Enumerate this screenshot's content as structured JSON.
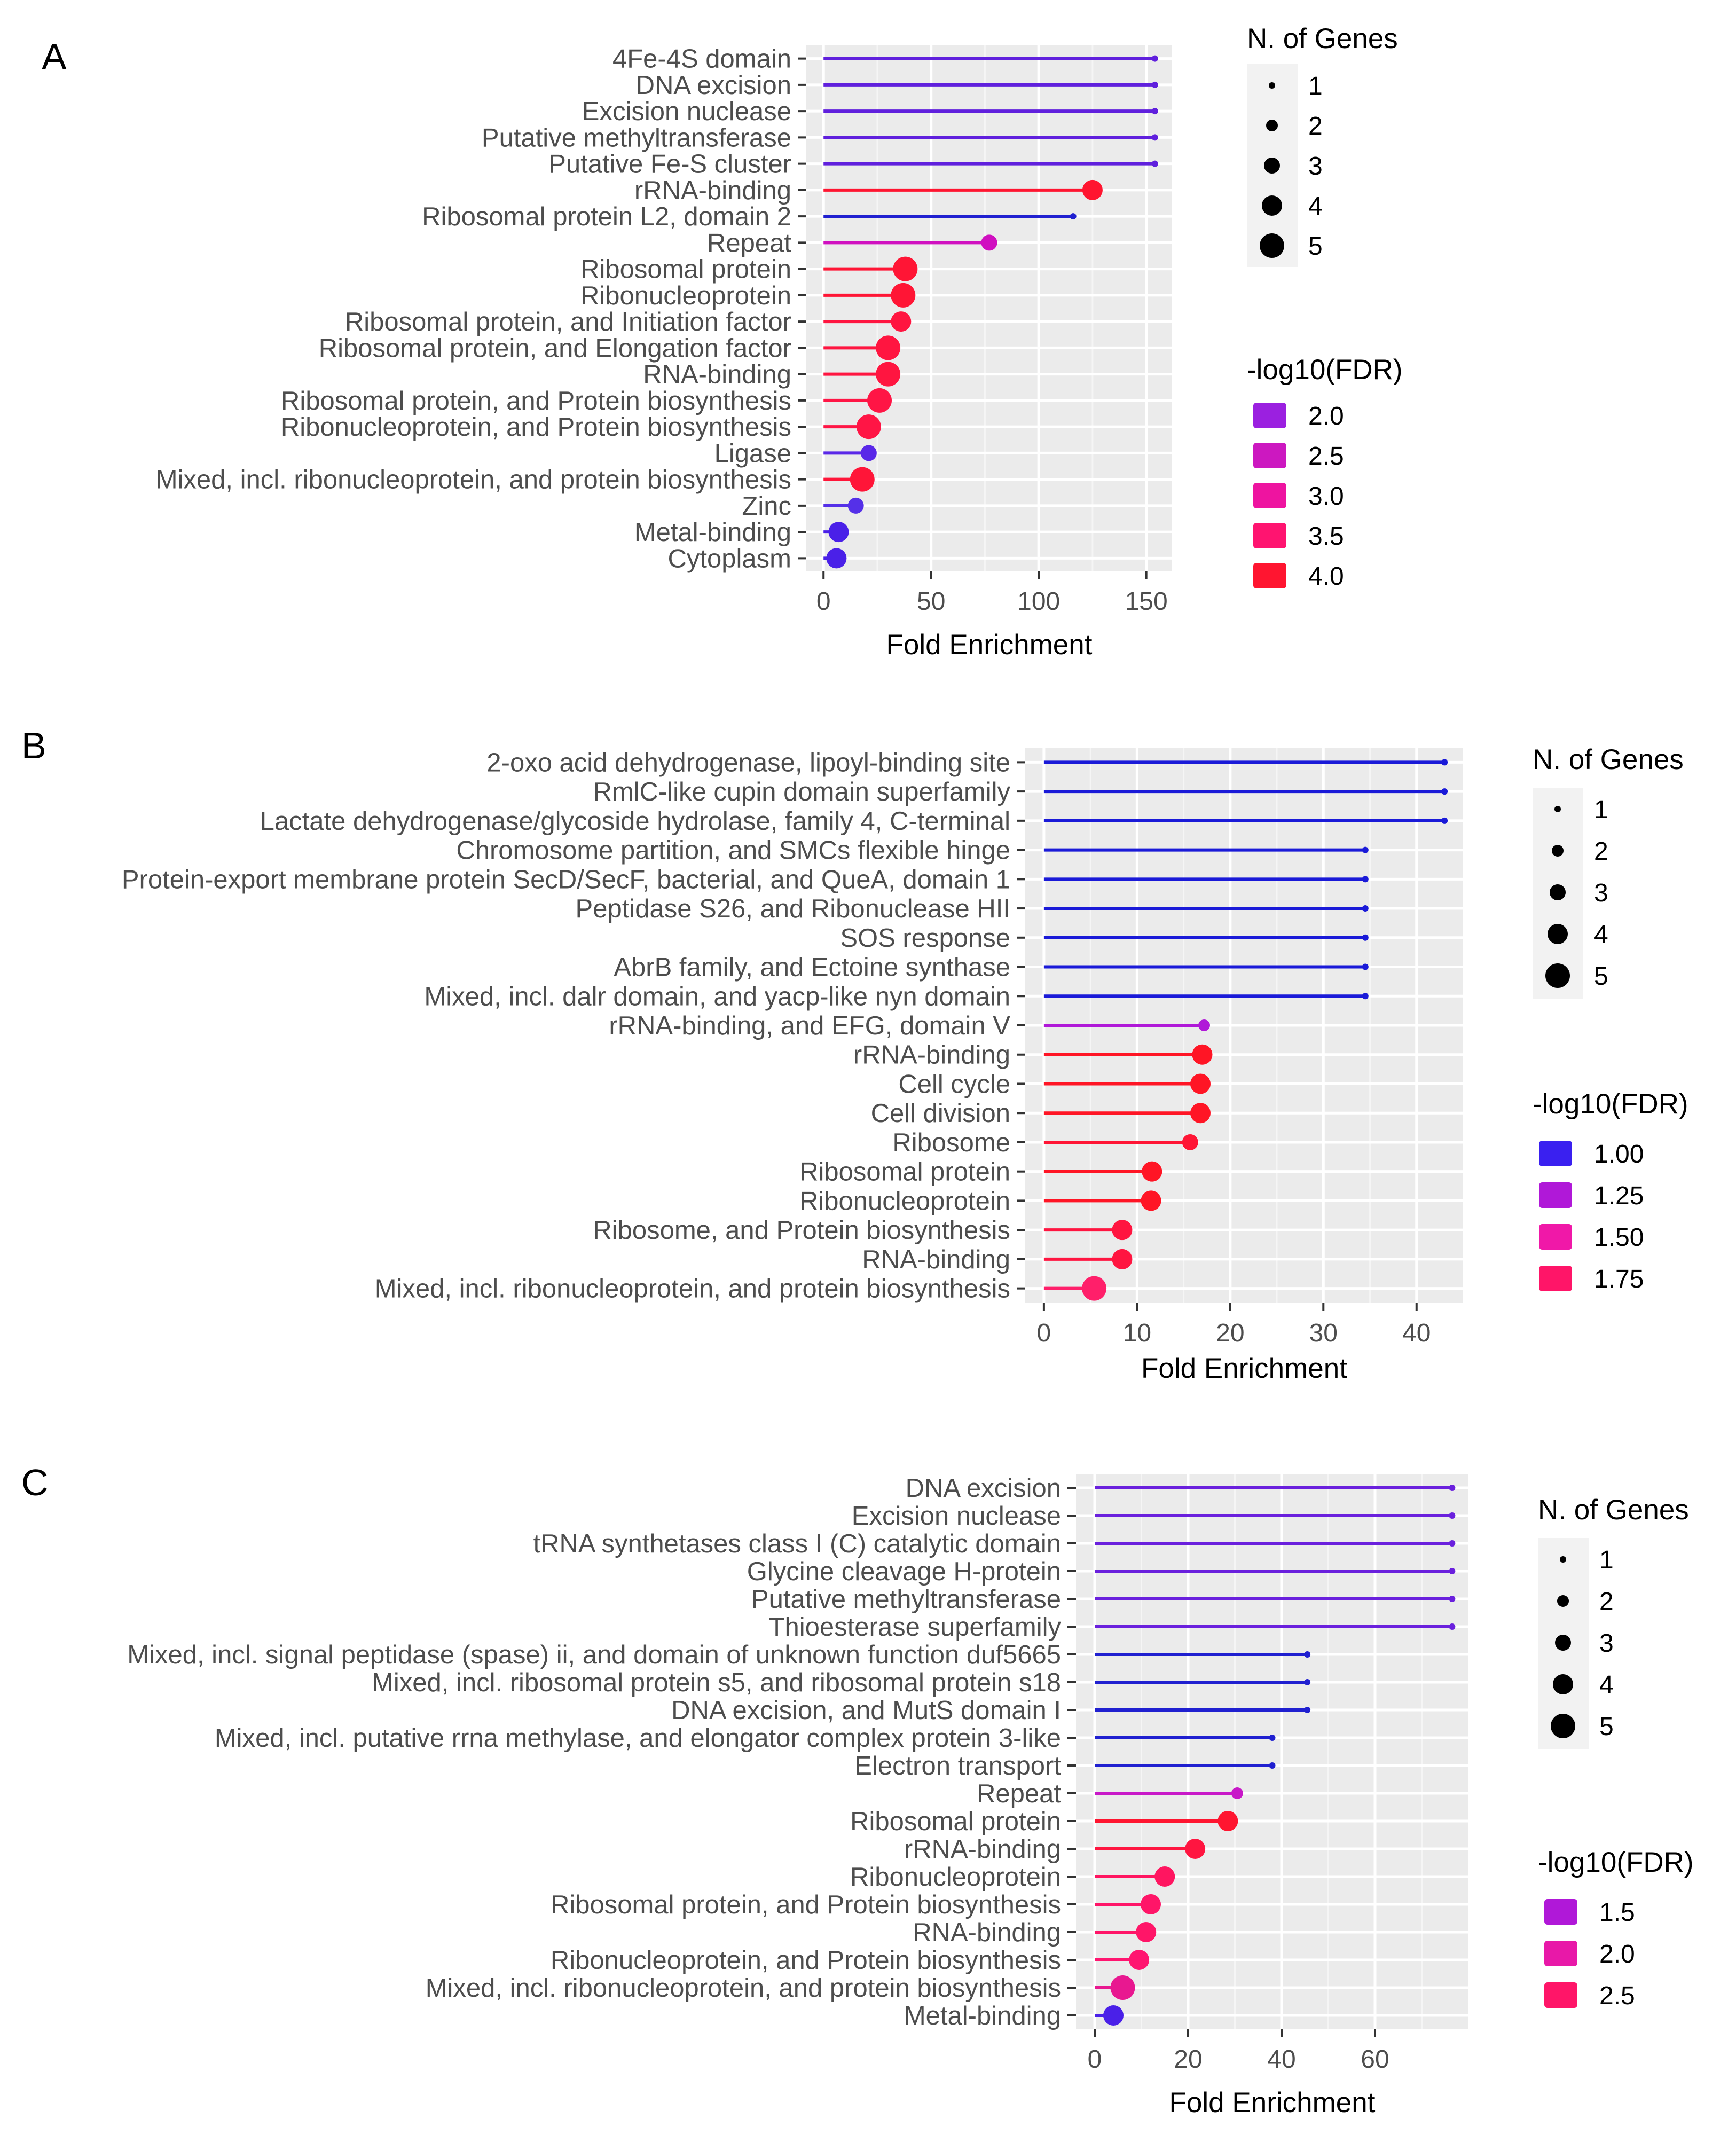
{
  "chart_data": [
    {
      "panel": "A",
      "type": "lollipop",
      "xlabel": "Fold Enrichment",
      "xlim": [
        -8,
        162
      ],
      "xticks": [
        0,
        50,
        100,
        150
      ],
      "categories": [
        "4Fe-4S domain",
        "DNA excision",
        "Excision nuclease",
        "Putative methyltransferase ",
        "Putative Fe-S cluster",
        "rRNA-binding",
        "Ribosomal protein L2, domain 2",
        "Repeat",
        "Ribosomal protein",
        "Ribonucleoprotein",
        "Ribosomal protein, and Initiation factor",
        "Ribosomal protein, and Elongation factor",
        "RNA-binding",
        "Ribosomal protein, and Protein biosynthesis",
        "Ribonucleoprotein, and Protein biosynthesis",
        "Ligase",
        "Mixed, incl. ribonucleoprotein, and protein biosynthesis",
        "Zinc",
        "Metal-binding",
        "Cytoplasm"
      ],
      "values": [
        154,
        154,
        154,
        154,
        154,
        125,
        116,
        77,
        38,
        37,
        36,
        30,
        30,
        26,
        21,
        21,
        18,
        15,
        7,
        6
      ],
      "n_genes": [
        1,
        1,
        1,
        1,
        1,
        4,
        1,
        3,
        5,
        5,
        4,
        5,
        5,
        5,
        5,
        3,
        5,
        3,
        4,
        4
      ],
      "colors": [
        "#6020dd",
        "#6020dd",
        "#6020dd",
        "#6020dd",
        "#6020dd",
        "#ff1530",
        "#2020d0",
        "#d010c0",
        "#ff1535",
        "#ff1535",
        "#ff1540",
        "#ff1540",
        "#ff1540",
        "#ff1545",
        "#ff1545",
        "#5a28e8",
        "#ff1538",
        "#5530e8",
        "#4a20e8",
        "#4a20e8"
      ],
      "legend_size": {
        "title": "N. of Genes",
        "items": [
          "1",
          "2",
          "3",
          "4",
          "5"
        ]
      },
      "legend_color": {
        "title": "-log10(FDR)",
        "items": [
          "2.0",
          "2.5",
          "3.0",
          "3.5",
          "4.0"
        ],
        "colors": [
          "#9b20e0",
          "#cc18c0",
          "#ee14a0",
          "#ff1470",
          "#ff1530"
        ]
      }
    },
    {
      "panel": "B",
      "type": "lollipop",
      "xlabel": "Fold Enrichment",
      "xlim": [
        -2,
        45
      ],
      "xticks": [
        0,
        10,
        20,
        30,
        40
      ],
      "categories": [
        "2-oxo acid dehydrogenase, lipoyl-binding site",
        "RmlC-like cupin domain superfamily",
        "Lactate dehydrogenase/glycoside hydrolase, family 4, C-terminal",
        "Chromosome partition, and SMCs flexible hinge",
        "Protein-export membrane protein SecD/SecF, bacterial, and QueA, domain 1",
        "Peptidase S26, and Ribonuclease HII",
        "SOS response",
        "AbrB family, and Ectoine synthase",
        "Mixed, incl. dalr domain, and yacp-like nyn domain",
        "rRNA-binding, and EFG, domain V",
        "rRNA-binding",
        "Cell cycle",
        "Cell division",
        "Ribosome",
        "Ribosomal protein",
        "Ribonucleoprotein",
        "Ribosome, and Protein biosynthesis",
        "RNA-binding",
        "Mixed, incl. ribonucleoprotein, and protein biosynthesis"
      ],
      "values": [
        43,
        43,
        43,
        34.5,
        34.5,
        34.5,
        34.5,
        34.5,
        34.5,
        17.2,
        17.0,
        16.8,
        16.8,
        15.7,
        11.6,
        11.5,
        8.4,
        8.4,
        5.4
      ],
      "n_genes": [
        1,
        1,
        1,
        1,
        1,
        1,
        1,
        1,
        1,
        2,
        4,
        4,
        4,
        3,
        4,
        4,
        4,
        4,
        5
      ],
      "colors": [
        "#1a1ad8",
        "#1a1ad8",
        "#1a1ad8",
        "#1a1ad8",
        "#1a1ad8",
        "#1a1ad8",
        "#1a1ad8",
        "#1a1ad8",
        "#1a1ad8",
        "#b018d8",
        "#ff1525",
        "#ff1525",
        "#ff1525",
        "#ff1535",
        "#ff1525",
        "#ff1525",
        "#ff1540",
        "#ff1540",
        "#ff1f6a"
      ],
      "legend_size": {
        "title": "N. of Genes",
        "items": [
          "1",
          "2",
          "3",
          "4",
          "5"
        ]
      },
      "legend_color": {
        "title": "-log10(FDR)",
        "items": [
          "1.00",
          "1.25",
          "1.50",
          "1.75"
        ],
        "colors": [
          "#3a20f0",
          "#b018d8",
          "#f018a8",
          "#ff1568"
        ]
      }
    },
    {
      "panel": "C",
      "type": "lollipop",
      "xlabel": "Fold Enrichment",
      "xlim": [
        -4,
        80
      ],
      "xticks": [
        0,
        20,
        40,
        60
      ],
      "categories": [
        "DNA excision",
        "Excision nuclease",
        "tRNA synthetases class I (C) catalytic domain",
        "Glycine cleavage H-protein",
        "Putative methyltransferase ",
        "Thioesterase superfamily",
        "Mixed, incl. signal peptidase (spase) ii, and domain of unknown function duf5665",
        "Mixed, incl. ribosomal protein s5, and ribosomal protein s18",
        "DNA excision, and MutS domain I",
        "Mixed, incl. putative rrna methylase, and elongator complex protein 3-like",
        "Electron transport",
        "Repeat",
        "Ribosomal protein",
        "rRNA-binding",
        "Ribonucleoprotein",
        "Ribosomal protein, and Protein biosynthesis",
        "RNA-binding",
        "Ribonucleoprotein, and Protein biosynthesis",
        "Mixed, incl. ribonucleoprotein, and protein biosynthesis",
        "Metal-binding"
      ],
      "values": [
        76.5,
        76.5,
        76.5,
        76.5,
        76.5,
        76.5,
        45.5,
        45.5,
        45.5,
        38,
        38,
        30.5,
        28.5,
        21.5,
        15,
        12,
        11,
        9.5,
        6,
        4
      ],
      "n_genes": [
        1,
        1,
        1,
        1,
        1,
        1,
        1,
        1,
        1,
        1,
        1,
        2,
        4,
        4,
        4,
        4,
        4,
        4,
        5,
        4
      ],
      "colors": [
        "#6a20dd",
        "#6a20dd",
        "#6a20dd",
        "#6a20dd",
        "#6a20dd",
        "#6a20dd",
        "#2020d0",
        "#2020d0",
        "#2020d0",
        "#2020d0",
        "#2020d0",
        "#c818c8",
        "#ff1530",
        "#ff1540",
        "#ff1560",
        "#ff1568",
        "#ff1568",
        "#ff1570",
        "#e81890",
        "#4a20e8"
      ],
      "legend_size": {
        "title": "N. of Genes",
        "items": [
          "1",
          "2",
          "3",
          "4",
          "5"
        ]
      },
      "legend_color": {
        "title": "-log10(FDR)",
        "items": [
          "1.5",
          "2.0",
          "2.5"
        ],
        "colors": [
          "#b018d8",
          "#e818a8",
          "#ff1568"
        ]
      }
    }
  ]
}
